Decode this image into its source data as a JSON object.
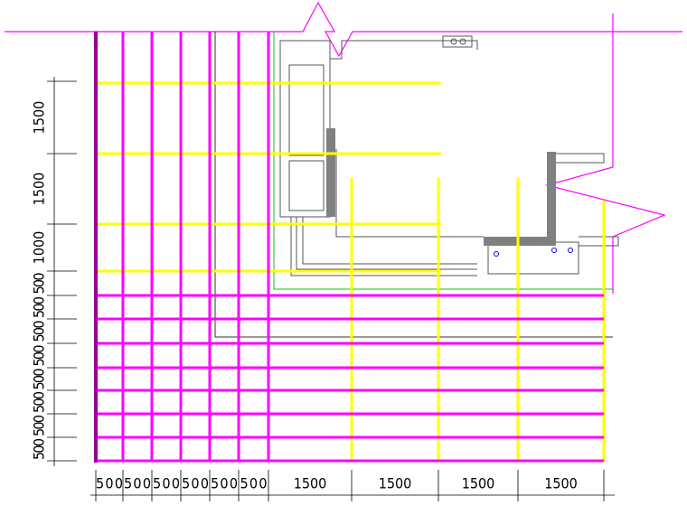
{
  "dimensions": {
    "bottom": [
      "500",
      "500",
      "500",
      "500",
      "500",
      "500",
      "1500",
      "1500",
      "1500",
      "1500"
    ],
    "left": [
      "1500",
      "1500",
      "1000",
      "500",
      "500",
      "500",
      "500",
      "500",
      "500",
      "500",
      "500"
    ]
  }
}
